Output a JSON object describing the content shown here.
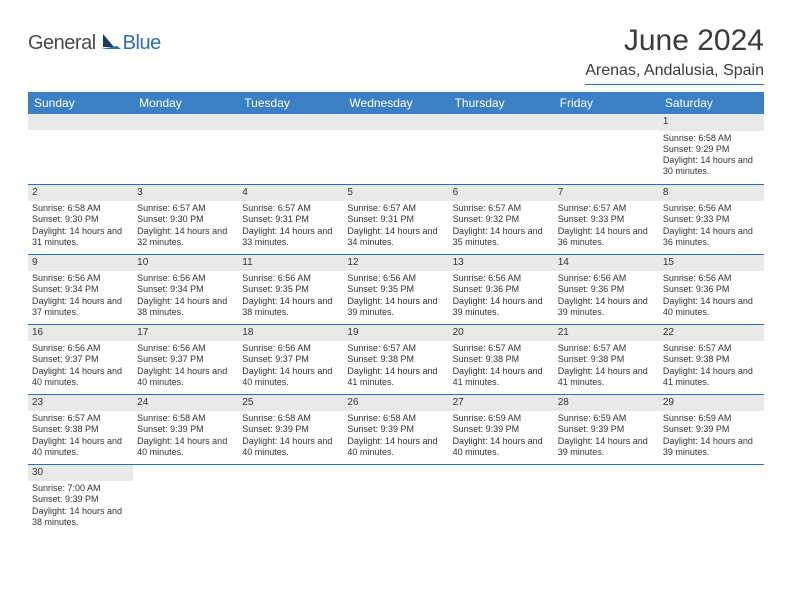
{
  "logo": {
    "text_general": "General",
    "text_blue": "Blue",
    "dark_color": "#1e3a5f",
    "blue_color": "#2a6db8"
  },
  "title": "June 2024",
  "location": "Arenas, Andalusia, Spain",
  "colors": {
    "header_bg": "#3b7fc4",
    "header_text": "#ffffff",
    "daynum_bg": "#e9e9e9",
    "border": "#2a6db8",
    "body_text": "#333333"
  },
  "weekdays": [
    "Sunday",
    "Monday",
    "Tuesday",
    "Wednesday",
    "Thursday",
    "Friday",
    "Saturday"
  ],
  "weeks": [
    [
      null,
      null,
      null,
      null,
      null,
      null,
      {
        "n": "1",
        "sr": "Sunrise: 6:58 AM",
        "ss": "Sunset: 9:29 PM",
        "dl": "Daylight: 14 hours and 30 minutes."
      }
    ],
    [
      {
        "n": "2",
        "sr": "Sunrise: 6:58 AM",
        "ss": "Sunset: 9:30 PM",
        "dl": "Daylight: 14 hours and 31 minutes."
      },
      {
        "n": "3",
        "sr": "Sunrise: 6:57 AM",
        "ss": "Sunset: 9:30 PM",
        "dl": "Daylight: 14 hours and 32 minutes."
      },
      {
        "n": "4",
        "sr": "Sunrise: 6:57 AM",
        "ss": "Sunset: 9:31 PM",
        "dl": "Daylight: 14 hours and 33 minutes."
      },
      {
        "n": "5",
        "sr": "Sunrise: 6:57 AM",
        "ss": "Sunset: 9:31 PM",
        "dl": "Daylight: 14 hours and 34 minutes."
      },
      {
        "n": "6",
        "sr": "Sunrise: 6:57 AM",
        "ss": "Sunset: 9:32 PM",
        "dl": "Daylight: 14 hours and 35 minutes."
      },
      {
        "n": "7",
        "sr": "Sunrise: 6:57 AM",
        "ss": "Sunset: 9:33 PM",
        "dl": "Daylight: 14 hours and 36 minutes."
      },
      {
        "n": "8",
        "sr": "Sunrise: 6:56 AM",
        "ss": "Sunset: 9:33 PM",
        "dl": "Daylight: 14 hours and 36 minutes."
      }
    ],
    [
      {
        "n": "9",
        "sr": "Sunrise: 6:56 AM",
        "ss": "Sunset: 9:34 PM",
        "dl": "Daylight: 14 hours and 37 minutes."
      },
      {
        "n": "10",
        "sr": "Sunrise: 6:56 AM",
        "ss": "Sunset: 9:34 PM",
        "dl": "Daylight: 14 hours and 38 minutes."
      },
      {
        "n": "11",
        "sr": "Sunrise: 6:56 AM",
        "ss": "Sunset: 9:35 PM",
        "dl": "Daylight: 14 hours and 38 minutes."
      },
      {
        "n": "12",
        "sr": "Sunrise: 6:56 AM",
        "ss": "Sunset: 9:35 PM",
        "dl": "Daylight: 14 hours and 39 minutes."
      },
      {
        "n": "13",
        "sr": "Sunrise: 6:56 AM",
        "ss": "Sunset: 9:36 PM",
        "dl": "Daylight: 14 hours and 39 minutes."
      },
      {
        "n": "14",
        "sr": "Sunrise: 6:56 AM",
        "ss": "Sunset: 9:36 PM",
        "dl": "Daylight: 14 hours and 39 minutes."
      },
      {
        "n": "15",
        "sr": "Sunrise: 6:56 AM",
        "ss": "Sunset: 9:36 PM",
        "dl": "Daylight: 14 hours and 40 minutes."
      }
    ],
    [
      {
        "n": "16",
        "sr": "Sunrise: 6:56 AM",
        "ss": "Sunset: 9:37 PM",
        "dl": "Daylight: 14 hours and 40 minutes."
      },
      {
        "n": "17",
        "sr": "Sunrise: 6:56 AM",
        "ss": "Sunset: 9:37 PM",
        "dl": "Daylight: 14 hours and 40 minutes."
      },
      {
        "n": "18",
        "sr": "Sunrise: 6:56 AM",
        "ss": "Sunset: 9:37 PM",
        "dl": "Daylight: 14 hours and 40 minutes."
      },
      {
        "n": "19",
        "sr": "Sunrise: 6:57 AM",
        "ss": "Sunset: 9:38 PM",
        "dl": "Daylight: 14 hours and 41 minutes."
      },
      {
        "n": "20",
        "sr": "Sunrise: 6:57 AM",
        "ss": "Sunset: 9:38 PM",
        "dl": "Daylight: 14 hours and 41 minutes."
      },
      {
        "n": "21",
        "sr": "Sunrise: 6:57 AM",
        "ss": "Sunset: 9:38 PM",
        "dl": "Daylight: 14 hours and 41 minutes."
      },
      {
        "n": "22",
        "sr": "Sunrise: 6:57 AM",
        "ss": "Sunset: 9:38 PM",
        "dl": "Daylight: 14 hours and 41 minutes."
      }
    ],
    [
      {
        "n": "23",
        "sr": "Sunrise: 6:57 AM",
        "ss": "Sunset: 9:38 PM",
        "dl": "Daylight: 14 hours and 40 minutes."
      },
      {
        "n": "24",
        "sr": "Sunrise: 6:58 AM",
        "ss": "Sunset: 9:39 PM",
        "dl": "Daylight: 14 hours and 40 minutes."
      },
      {
        "n": "25",
        "sr": "Sunrise: 6:58 AM",
        "ss": "Sunset: 9:39 PM",
        "dl": "Daylight: 14 hours and 40 minutes."
      },
      {
        "n": "26",
        "sr": "Sunrise: 6:58 AM",
        "ss": "Sunset: 9:39 PM",
        "dl": "Daylight: 14 hours and 40 minutes."
      },
      {
        "n": "27",
        "sr": "Sunrise: 6:59 AM",
        "ss": "Sunset: 9:39 PM",
        "dl": "Daylight: 14 hours and 40 minutes."
      },
      {
        "n": "28",
        "sr": "Sunrise: 6:59 AM",
        "ss": "Sunset: 9:39 PM",
        "dl": "Daylight: 14 hours and 39 minutes."
      },
      {
        "n": "29",
        "sr": "Sunrise: 6:59 AM",
        "ss": "Sunset: 9:39 PM",
        "dl": "Daylight: 14 hours and 39 minutes."
      }
    ],
    [
      {
        "n": "30",
        "sr": "Sunrise: 7:00 AM",
        "ss": "Sunset: 9:39 PM",
        "dl": "Daylight: 14 hours and 38 minutes."
      },
      null,
      null,
      null,
      null,
      null,
      null
    ]
  ]
}
